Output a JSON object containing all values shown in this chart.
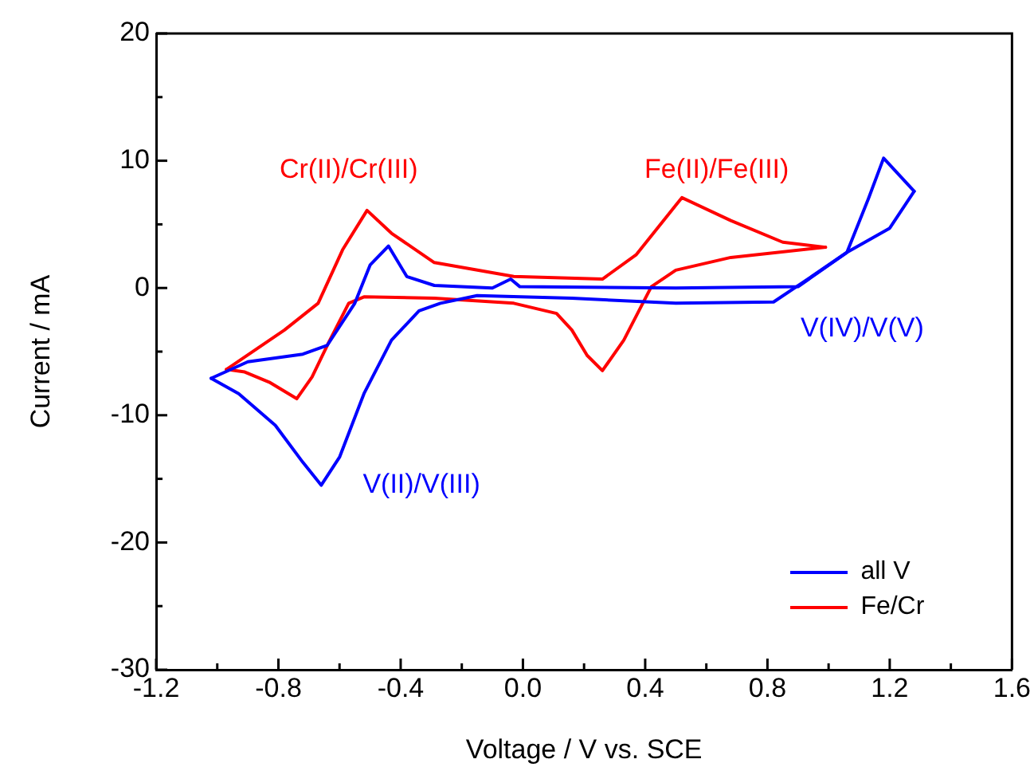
{
  "chart_data": {
    "type": "line",
    "xlabel": "Voltage / V vs. SCE",
    "ylabel": "Current / mA",
    "xlim": [
      -1.2,
      1.6
    ],
    "ylim": [
      -30,
      20
    ],
    "xticks": [
      -1.2,
      {
        "value": -1.0,
        "label": null
      },
      -0.8,
      {
        "value": -0.6,
        "label": null
      },
      -0.4,
      {
        "value": -0.2,
        "label": null
      },
      {
        "value": 0,
        "label": "0.0"
      },
      {
        "value": 0.2,
        "label": null
      },
      0.4,
      {
        "value": 0.6,
        "label": null
      },
      0.8,
      {
        "value": 1.0,
        "label": null
      },
      1.2,
      {
        "value": 1.4,
        "label": null
      },
      1.6
    ],
    "yticks": [
      -30,
      {
        "value": -25,
        "label": null
      },
      -20,
      {
        "value": -15,
        "label": null
      },
      -10,
      {
        "value": -5,
        "label": null
      },
      0,
      {
        "value": 5,
        "label": null
      },
      10,
      {
        "value": 15,
        "label": null
      },
      20
    ],
    "grid": false,
    "legend": "bottom right",
    "marker": "none",
    "line_style": "solid",
    "series": [
      {
        "name": "all V",
        "color": "#0000ff",
        "x": [
          -1.02,
          -0.9,
          -0.72,
          -0.64,
          -0.55,
          -0.5,
          -0.44,
          -0.38,
          -0.29,
          -0.1,
          -0.04,
          -0.01,
          0.5,
          0.9,
          1.06,
          1.13,
          1.18,
          1.28
        ],
        "values": [
          -7.1,
          -5.8,
          -5.2,
          -4.5,
          -1.2,
          1.8,
          3.3,
          0.9,
          0.2,
          0.0,
          0.7,
          0.1,
          0.0,
          0.1,
          2.8,
          7.0,
          10.2,
          7.6
        ]
      },
      {
        "color": "#0000ff",
        "x": [
          1.28,
          1.2,
          1.06,
          0.92,
          0.82,
          0.5,
          0.16,
          -0.15,
          -0.27,
          -0.34,
          -0.43,
          -0.52,
          -0.6,
          -0.66,
          -0.72,
          -0.81,
          -0.93,
          -1.02
        ],
        "values": [
          7.6,
          4.7,
          2.8,
          0.5,
          -1.1,
          -1.2,
          -0.8,
          -0.6,
          -1.2,
          -1.8,
          -4.1,
          -8.3,
          -13.3,
          -15.5,
          -13.7,
          -10.8,
          -8.3,
          -7.1
        ]
      },
      {
        "name": "Fe/Cr",
        "color": "#ff0000",
        "x": [
          -0.97,
          -0.78,
          -0.67,
          -0.59,
          -0.51,
          -0.43,
          -0.29,
          -0.03,
          0.26,
          0.37,
          0.52,
          0.68,
          0.85,
          0.99
        ],
        "values": [
          -6.4,
          -3.3,
          -1.2,
          3.0,
          6.1,
          4.3,
          2.0,
          0.9,
          0.7,
          2.6,
          7.1,
          5.3,
          3.6,
          3.2
        ]
      },
      {
        "color": "#ff0000",
        "x": [
          0.99,
          0.68,
          0.5,
          0.42,
          0.33,
          0.26,
          0.21,
          0.16,
          0.11,
          -0.03,
          -0.29,
          -0.52,
          -0.57,
          -0.64,
          -0.69,
          -0.74,
          -0.83,
          -0.91,
          -0.97
        ],
        "values": [
          3.2,
          2.4,
          1.4,
          0.1,
          -4.1,
          -6.5,
          -5.3,
          -3.3,
          -2.0,
          -1.2,
          -0.8,
          -0.7,
          -1.2,
          -4.5,
          -7.0,
          -8.7,
          -7.4,
          -6.6,
          -6.4
        ]
      }
    ],
    "annotations": [
      "Cr(II)/Cr(III)",
      "Fe(II)/Fe(III)",
      "V(II)/V(III)",
      "V(IV)/V(V)"
    ]
  }
}
